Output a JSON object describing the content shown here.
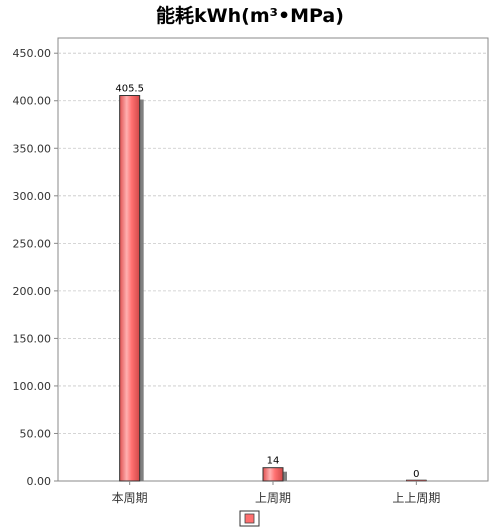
{
  "chart_data": {
    "type": "bar",
    "title": "能耗kWh(m³•MPa)",
    "xlabel": "",
    "ylabel": "",
    "categories": [
      "本周期",
      "上周期",
      "上上周期"
    ],
    "series": [
      {
        "name": "",
        "values": [
          405.5,
          14,
          0
        ]
      }
    ],
    "value_labels": [
      "405.5",
      "14",
      "0"
    ],
    "y_ticks": [
      "0.00",
      "50.00",
      "100.00",
      "150.00",
      "200.00",
      "250.00",
      "300.00",
      "350.00",
      "400.00",
      "450.00"
    ],
    "ylim": [
      0,
      466
    ],
    "grid": true,
    "legend_position": "bottom-center",
    "colors": {
      "bar_fill": "#ff6f6f",
      "bar_highlight": "#ffb0b0",
      "bar_edge": "#c04040",
      "bar_outline": "#333333",
      "bar_shadow": "#808080",
      "grid": "#c8c8c8",
      "axis": "#888888",
      "text": "#333333",
      "title": "#000000"
    }
  }
}
